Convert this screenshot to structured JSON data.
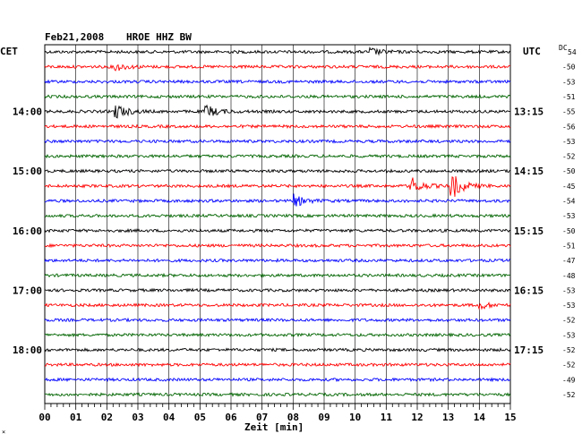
{
  "header": {
    "date": "Feb21,2008",
    "station": "HROE HHZ BW",
    "left_zone": "CET",
    "right_zone": "UTC",
    "dc_label": "DC",
    "dc_first": "54"
  },
  "chart_data": {
    "type": "line",
    "title": "Feb21,2008   HROE HHZ BW",
    "xlabel": "Zeit [min]",
    "xlim": [
      0,
      15
    ],
    "x_ticks": [
      "00",
      "01",
      "02",
      "03",
      "04",
      "05",
      "06",
      "07",
      "08",
      "09",
      "10",
      "11",
      "12",
      "13",
      "14",
      "15"
    ],
    "trace_count": 24,
    "trace_colors": [
      "#000000",
      "#ff0000",
      "#0000ff",
      "#006400"
    ],
    "left_hour_labels": [
      {
        "trace": 4,
        "label": "14:00"
      },
      {
        "trace": 8,
        "label": "15:00"
      },
      {
        "trace": 12,
        "label": "16:00"
      },
      {
        "trace": 16,
        "label": "17:00"
      },
      {
        "trace": 20,
        "label": "18:00"
      }
    ],
    "right_hour_labels": [
      {
        "trace": 4,
        "label": "13:15"
      },
      {
        "trace": 8,
        "label": "14:15"
      },
      {
        "trace": 12,
        "label": "15:15"
      },
      {
        "trace": 16,
        "label": "16:15"
      },
      {
        "trace": 20,
        "label": "17:15"
      }
    ],
    "dc_offsets": [
      "-50",
      "-53",
      "-51",
      "-55",
      "-56",
      "-53",
      "-52",
      "-50",
      "-45",
      "-54",
      "-53",
      "-50",
      "-51",
      "-47",
      "-48",
      "-53",
      "-53",
      "-52",
      "-53",
      "-52",
      "-52",
      "-49",
      "-52"
    ],
    "events": [
      {
        "trace": 4,
        "minute": 2.3,
        "amp": 8
      },
      {
        "trace": 4,
        "minute": 5.2,
        "amp": 7
      },
      {
        "trace": 10,
        "minute": 8.0,
        "amp": 7
      },
      {
        "trace": 9,
        "minute": 11.8,
        "amp": 10
      },
      {
        "trace": 9,
        "minute": 13.1,
        "amp": 15
      },
      {
        "trace": 1,
        "minute": 2.3,
        "amp": 4
      },
      {
        "trace": 0,
        "minute": 10.5,
        "amp": 4
      },
      {
        "trace": 17,
        "minute": 14.0,
        "amp": 4
      }
    ]
  }
}
